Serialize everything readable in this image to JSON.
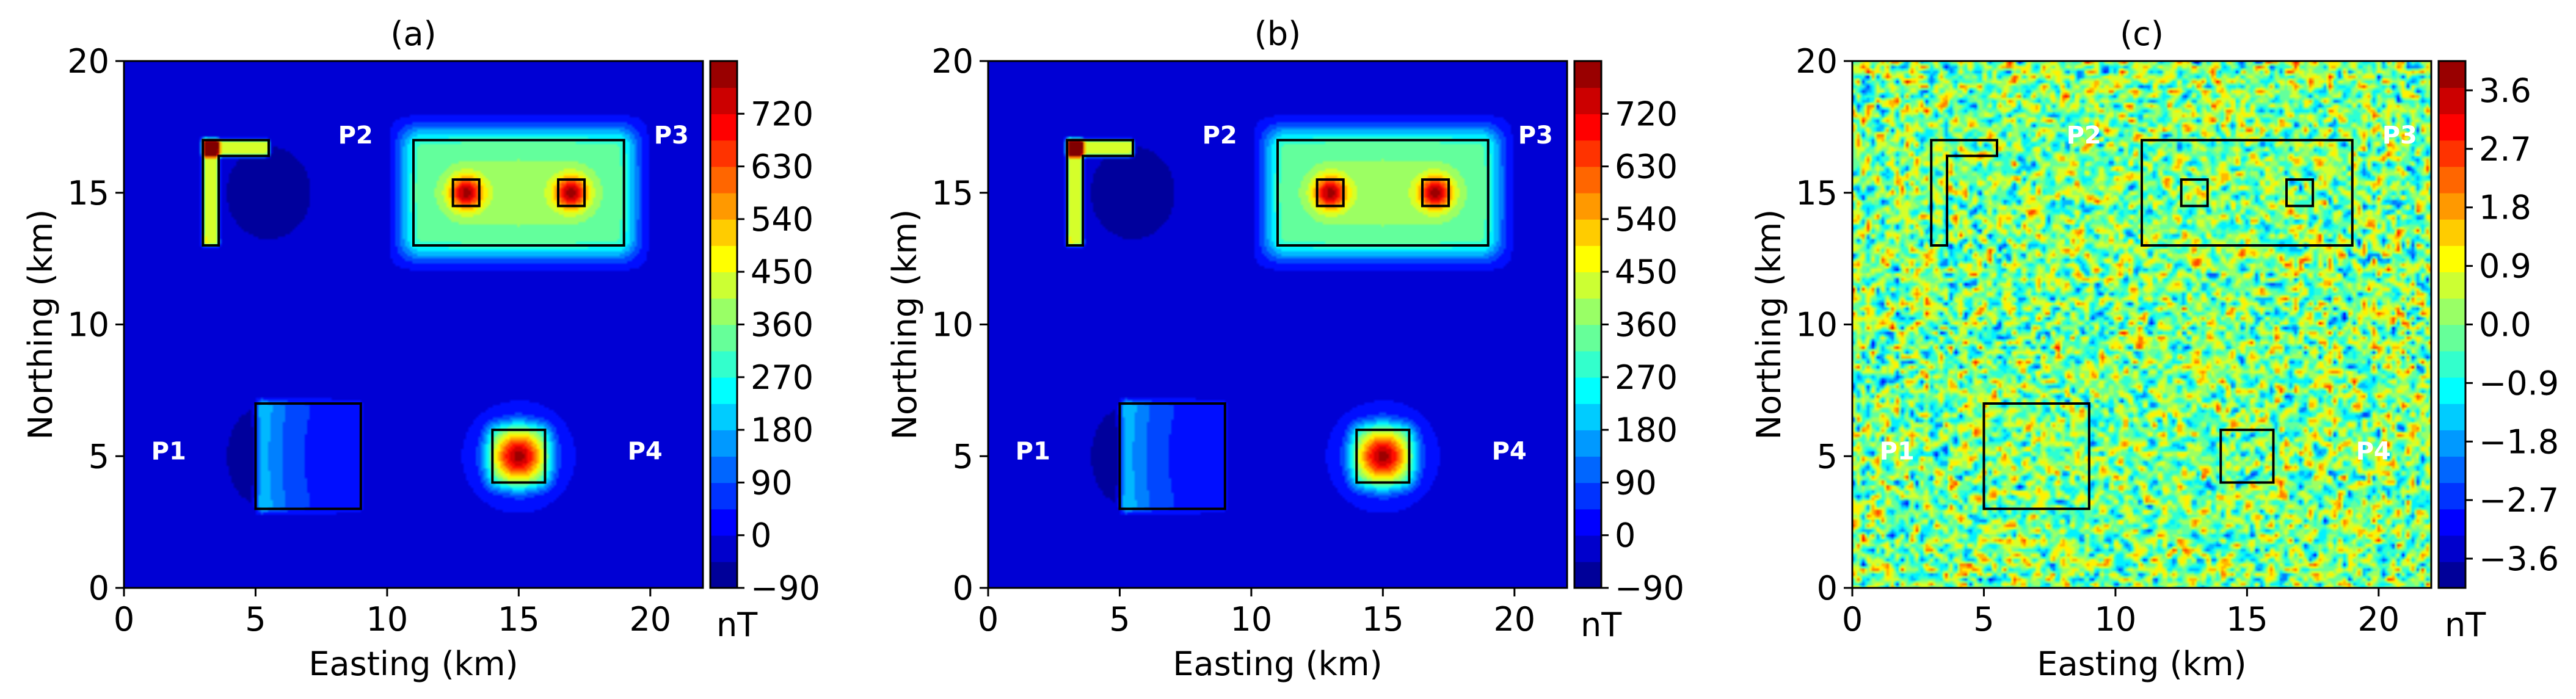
{
  "chart_data": [
    {
      "type": "heatmap",
      "title": "(a)",
      "xlabel": "Easting (km)",
      "ylabel": "Northing (km)",
      "xlim": [
        0,
        22
      ],
      "ylim": [
        0,
        20
      ],
      "xticks": [
        "0",
        "5",
        "10",
        "15",
        "20"
      ],
      "yticks": [
        "0",
        "5",
        "10",
        "15",
        "20"
      ],
      "colorbar": {
        "label": "nT",
        "colormap": "jet",
        "range": [
          -90,
          810
        ],
        "ticks": [
          {
            "value": -90,
            "label": "−90"
          },
          {
            "value": 0,
            "label": "0"
          },
          {
            "value": 90,
            "label": "90"
          },
          {
            "value": 180,
            "label": "180"
          },
          {
            "value": 270,
            "label": "270"
          },
          {
            "value": 360,
            "label": "360"
          },
          {
            "value": 450,
            "label": "450"
          },
          {
            "value": 540,
            "label": "540"
          },
          {
            "value": 630,
            "label": "630"
          },
          {
            "value": 720,
            "label": "720"
          }
        ]
      },
      "anomaly_peak_values": {
        "P1": 260,
        "P2": 480,
        "P3_prism": 380,
        "P3_cubes": 800,
        "P4": 640
      },
      "labels": [
        {
          "text": "P1",
          "x": 1.7,
          "y": 5.2
        },
        {
          "text": "P2",
          "x": 8.8,
          "y": 17.2
        },
        {
          "text": "P3",
          "x": 20.8,
          "y": 17.2
        },
        {
          "text": "P4",
          "x": 19.8,
          "y": 5.2
        }
      ]
    },
    {
      "type": "heatmap",
      "title": "(b)",
      "xlabel": "Easting (km)",
      "ylabel": "Northing (km)",
      "xlim": [
        0,
        22
      ],
      "ylim": [
        0,
        20
      ],
      "xticks": [
        "0",
        "5",
        "10",
        "15",
        "20"
      ],
      "yticks": [
        "0",
        "5",
        "10",
        "15",
        "20"
      ],
      "colorbar": {
        "label": "nT",
        "colormap": "jet",
        "range": [
          -90,
          810
        ],
        "ticks": [
          {
            "value": -90,
            "label": "−90"
          },
          {
            "value": 0,
            "label": "0"
          },
          {
            "value": 90,
            "label": "90"
          },
          {
            "value": 180,
            "label": "180"
          },
          {
            "value": 270,
            "label": "270"
          },
          {
            "value": 360,
            "label": "360"
          },
          {
            "value": 450,
            "label": "450"
          },
          {
            "value": 540,
            "label": "540"
          },
          {
            "value": 630,
            "label": "630"
          },
          {
            "value": 720,
            "label": "720"
          }
        ]
      },
      "anomaly_peak_values": {
        "P1": 260,
        "P2": 480,
        "P3_prism": 380,
        "P3_cubes": 800,
        "P4": 640
      },
      "labels": [
        {
          "text": "P1",
          "x": 1.7,
          "y": 5.2
        },
        {
          "text": "P2",
          "x": 8.8,
          "y": 17.2
        },
        {
          "text": "P3",
          "x": 20.8,
          "y": 17.2
        },
        {
          "text": "P4",
          "x": 19.8,
          "y": 5.2
        }
      ]
    },
    {
      "type": "heatmap",
      "title": "(c)",
      "xlabel": "Easting (km)",
      "ylabel": "Northing (km)",
      "xlim": [
        0,
        22
      ],
      "ylim": [
        0,
        20
      ],
      "xticks": [
        "0",
        "5",
        "10",
        "15",
        "20"
      ],
      "yticks": [
        "0",
        "5",
        "10",
        "15",
        "20"
      ],
      "colorbar": {
        "label": "nT",
        "colormap": "jet",
        "range": [
          -4.05,
          4.05
        ],
        "ticks": [
          {
            "value": -3.6,
            "label": "−3.6"
          },
          {
            "value": -2.7,
            "label": "−2.7"
          },
          {
            "value": -1.8,
            "label": "−1.8"
          },
          {
            "value": -0.9,
            "label": "−0.9"
          },
          {
            "value": 0.0,
            "label": "0.0"
          },
          {
            "value": 0.9,
            "label": "0.9"
          },
          {
            "value": 1.8,
            "label": "1.8"
          },
          {
            "value": 2.7,
            "label": "2.7"
          },
          {
            "value": 3.6,
            "label": "3.6"
          }
        ]
      },
      "noise": true,
      "labels": [
        {
          "text": "P1",
          "x": 1.7,
          "y": 5.2
        },
        {
          "text": "P2",
          "x": 8.8,
          "y": 17.2
        },
        {
          "text": "P3",
          "x": 20.8,
          "y": 17.2
        },
        {
          "text": "P4",
          "x": 19.8,
          "y": 5.2
        }
      ]
    }
  ],
  "source_outlines": [
    {
      "name": "P1",
      "points": [
        [
          5,
          3
        ],
        [
          9,
          3
        ],
        [
          9,
          7
        ],
        [
          5,
          7
        ]
      ]
    },
    {
      "name": "P2",
      "points": [
        [
          3,
          13
        ],
        [
          3.6,
          13
        ],
        [
          3.6,
          16.4
        ],
        [
          5.5,
          16.4
        ],
        [
          5.5,
          17
        ],
        [
          3,
          17
        ]
      ]
    },
    {
      "name": "P3",
      "points": [
        [
          11,
          13
        ],
        [
          19,
          13
        ],
        [
          19,
          17
        ],
        [
          11,
          17
        ]
      ]
    },
    {
      "name": "P3-cube-left",
      "points": [
        [
          12.5,
          14.5
        ],
        [
          13.5,
          14.5
        ],
        [
          13.5,
          15.5
        ],
        [
          12.5,
          15.5
        ]
      ]
    },
    {
      "name": "P3-cube-right",
      "points": [
        [
          16.5,
          14.5
        ],
        [
          17.5,
          14.5
        ],
        [
          17.5,
          15.5
        ],
        [
          16.5,
          15.5
        ]
      ]
    },
    {
      "name": "P4",
      "points": [
        [
          14,
          4
        ],
        [
          16,
          4
        ],
        [
          16,
          6
        ],
        [
          14,
          6
        ]
      ]
    }
  ]
}
